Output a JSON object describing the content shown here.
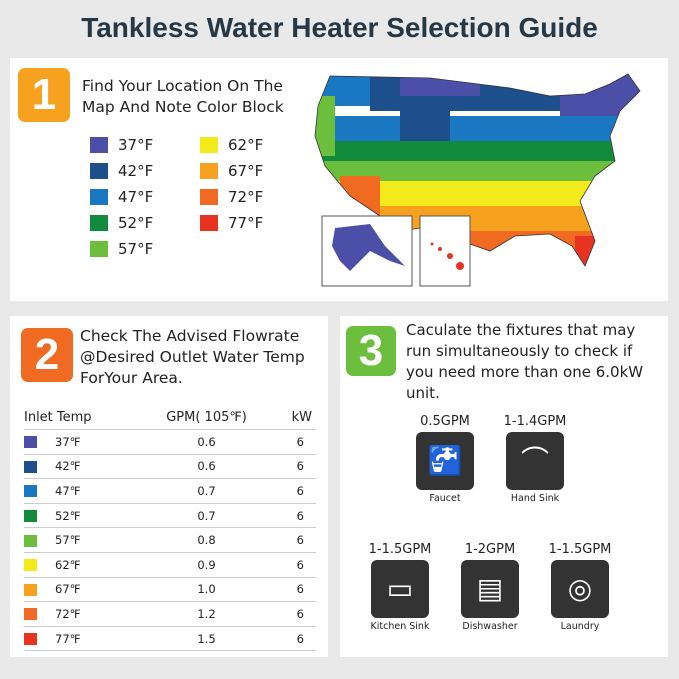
{
  "title": "Tankless Water Heater Selection Guide",
  "step1": {
    "number": "1",
    "color": "#f7a21e",
    "text": "Find Your Location On The Map And Note Color Block",
    "legend": [
      {
        "label": "37°F",
        "color": "#4b4fa8"
      },
      {
        "label": "42°F",
        "color": "#1c4f8c"
      },
      {
        "label": "47°F",
        "color": "#1a78c2"
      },
      {
        "label": "52°F",
        "color": "#128a3c"
      },
      {
        "label": "57°F",
        "color": "#6cbf3c"
      },
      {
        "label": "62°F",
        "color": "#f3ea1c"
      },
      {
        "label": "67°F",
        "color": "#f7a21e"
      },
      {
        "label": "72°F",
        "color": "#f06a22"
      },
      {
        "label": "77°F",
        "color": "#e83323"
      }
    ]
  },
  "step2": {
    "number": "2",
    "color": "#f06a22",
    "text": "Check The Advised Flowrate @Desired Outlet Water Temp ForYour Area.",
    "headers": [
      "Inlet Temp",
      "GPM( 105℉)",
      "kW"
    ],
    "rows": [
      {
        "temp": "37℉",
        "gpm": "0.6",
        "kw": "6"
      },
      {
        "temp": "42℉",
        "gpm": "0.6",
        "kw": "6"
      },
      {
        "temp": "47℉",
        "gpm": "0.7",
        "kw": "6"
      },
      {
        "temp": "52℉",
        "gpm": "0.7",
        "kw": "6"
      },
      {
        "temp": "57℉",
        "gpm": "0.8",
        "kw": "6"
      },
      {
        "temp": "62℉",
        "gpm": "0.9",
        "kw": "6"
      },
      {
        "temp": "67℉",
        "gpm": "1.0",
        "kw": "6"
      },
      {
        "temp": "72℉",
        "gpm": "1.2",
        "kw": "6"
      },
      {
        "temp": "77℉",
        "gpm": "1.5",
        "kw": "6"
      }
    ]
  },
  "step3": {
    "number": "3",
    "color": "#6cbf3c",
    "text": "Caculate the fixtures that may run simultaneously to check if you need more than one 6.0kW unit.",
    "fixtures": [
      {
        "gpm": "0.5GPM",
        "label": "Faucet",
        "icon": "faucet-icon"
      },
      {
        "gpm": "1-1.4GPM",
        "label": "Hand Sink",
        "icon": "hand-sink-icon"
      },
      {
        "gpm": "1-1.5GPM",
        "label": "Kitchen Sink",
        "icon": "kitchen-sink-icon"
      },
      {
        "gpm": "1-2GPM",
        "label": "Dishwasher",
        "icon": "dishwasher-icon"
      },
      {
        "gpm": "1-1.5GPM",
        "label": "Laundry",
        "icon": "laundry-icon"
      }
    ]
  }
}
